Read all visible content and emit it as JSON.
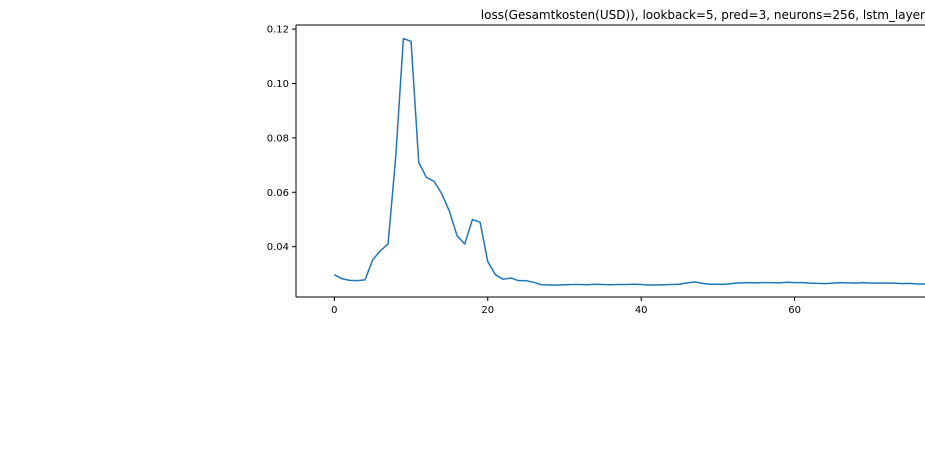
{
  "chart_data": {
    "type": "line",
    "title": "loss(Gesamtkosten(USD)), lookback=5, pred=3, neurons=256, lstm_layer",
    "xlabel": "",
    "ylabel": "",
    "xlim": [
      -5,
      77
    ],
    "ylim": [
      0.0215,
      0.1215
    ],
    "x_ticks": [
      0,
      20,
      40,
      60
    ],
    "y_ticks": [
      0.04,
      0.06,
      0.08,
      0.1,
      0.12
    ],
    "x_tick_labels": [
      "0",
      "20",
      "40",
      "60"
    ],
    "y_tick_labels": [
      "0.04",
      "0.06",
      "0.08",
      "0.10",
      "0.12"
    ],
    "grid": false,
    "colors": {
      "line": "#1f77b4",
      "axis": "#000000"
    },
    "series": [
      {
        "x": [
          0,
          1,
          2,
          3,
          4,
          5,
          6,
          7,
          8,
          9,
          10,
          11,
          12,
          13,
          14,
          15,
          16,
          17,
          18,
          19,
          20,
          21,
          22,
          23,
          24,
          25,
          26,
          27,
          28,
          29,
          30,
          31,
          32,
          33,
          34,
          35,
          36,
          37,
          38,
          39,
          40,
          41,
          42,
          43,
          44,
          45,
          46,
          47,
          48,
          49,
          50,
          51,
          52,
          53,
          54,
          55,
          56,
          57,
          58,
          59,
          60,
          61,
          62,
          63,
          64,
          65,
          66,
          67,
          68,
          69,
          70,
          71,
          72,
          73,
          74,
          75,
          76,
          77
        ],
        "values": [
          0.0297,
          0.0282,
          0.0276,
          0.0275,
          0.0278,
          0.0352,
          0.0385,
          0.041,
          0.073,
          0.1165,
          0.1155,
          0.071,
          0.0655,
          0.064,
          0.0595,
          0.053,
          0.044,
          0.041,
          0.05,
          0.049,
          0.0345,
          0.0297,
          0.028,
          0.0285,
          0.0275,
          0.0275,
          0.0269,
          0.026,
          0.0259,
          0.0259,
          0.026,
          0.0261,
          0.0261,
          0.026,
          0.0262,
          0.0261,
          0.026,
          0.0261,
          0.0261,
          0.0262,
          0.0261,
          0.0259,
          0.0259,
          0.026,
          0.0261,
          0.0262,
          0.0267,
          0.027,
          0.0265,
          0.0262,
          0.0262,
          0.0262,
          0.0265,
          0.0267,
          0.0268,
          0.0267,
          0.0268,
          0.0268,
          0.0267,
          0.0269,
          0.0268,
          0.0268,
          0.0266,
          0.0265,
          0.0264,
          0.0266,
          0.0268,
          0.0267,
          0.0266,
          0.0268,
          0.0266,
          0.0266,
          0.0266,
          0.0266,
          0.0264,
          0.0265,
          0.0263,
          0.0263
        ]
      }
    ]
  }
}
